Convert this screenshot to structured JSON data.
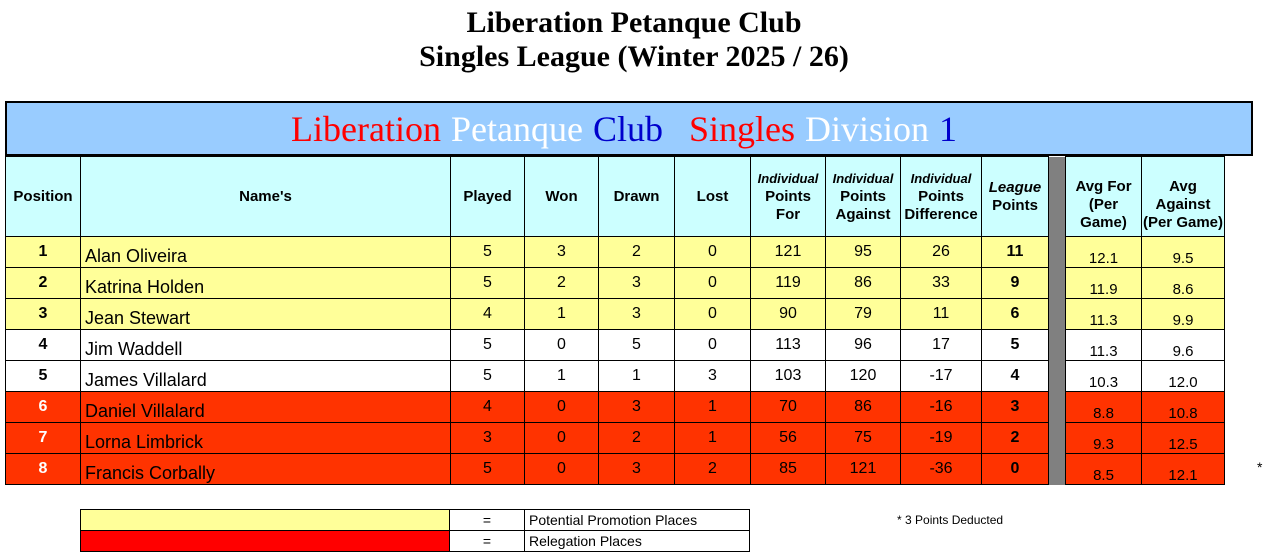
{
  "title": {
    "line1": "Liberation Petanque Club",
    "line2": "Singles League (Winter 2025 / 26)"
  },
  "banner": [
    {
      "text": "Liberation",
      "color": "#ff0000"
    },
    {
      "text": "Petanque",
      "color": "#ffffff"
    },
    {
      "text": "Club",
      "color": "#0000cc"
    },
    {
      "text": "Singles",
      "color": "#ff0000"
    },
    {
      "text": "Division",
      "color": "#ffffff"
    },
    {
      "text": "1",
      "color": "#0000cc"
    }
  ],
  "headers": {
    "position": "Position",
    "name": "Name's",
    "played": "Played",
    "won": "Won",
    "drawn": "Drawn",
    "lost": "Lost",
    "individual": "Individual",
    "points": "Points",
    "for": "For",
    "against": "Against",
    "difference": "Difference",
    "league": "League",
    "avg_for": "Avg For",
    "avg_against": "Avg Against",
    "per_game": "(Per Game)"
  },
  "rows": [
    {
      "pos": "1",
      "name": "Alan Oliveira",
      "played": "5",
      "won": "3",
      "drawn": "2",
      "lost": "0",
      "pf": "121",
      "pa": "95",
      "pd": "26",
      "lp": "11",
      "avg_for": "12.1",
      "avg_against": "9.5",
      "zone": "promo"
    },
    {
      "pos": "2",
      "name": "Katrina Holden",
      "played": "5",
      "won": "2",
      "drawn": "3",
      "lost": "0",
      "pf": "119",
      "pa": "86",
      "pd": "33",
      "lp": "9",
      "avg_for": "11.9",
      "avg_against": "8.6",
      "zone": "promo"
    },
    {
      "pos": "3",
      "name": "Jean Stewart",
      "played": "4",
      "won": "1",
      "drawn": "3",
      "lost": "0",
      "pf": "90",
      "pa": "79",
      "pd": "11",
      "lp": "6",
      "avg_for": "11.3",
      "avg_against": "9.9",
      "zone": "promo"
    },
    {
      "pos": "4",
      "name": "Jim Waddell",
      "played": "5",
      "won": "0",
      "drawn": "5",
      "lost": "0",
      "pf": "113",
      "pa": "96",
      "pd": "17",
      "lp": "5",
      "avg_for": "11.3",
      "avg_against": "9.6",
      "zone": "white"
    },
    {
      "pos": "5",
      "name": "James Villalard",
      "played": "5",
      "won": "1",
      "drawn": "1",
      "lost": "3",
      "pf": "103",
      "pa": "120",
      "pd": "-17",
      "lp": "4",
      "avg_for": "10.3",
      "avg_against": "12.0",
      "zone": "white"
    },
    {
      "pos": "6",
      "name": "Daniel Villalard",
      "played": "4",
      "won": "0",
      "drawn": "3",
      "lost": "1",
      "pf": "70",
      "pa": "86",
      "pd": "-16",
      "lp": "3",
      "avg_for": "8.8",
      "avg_against": "10.8",
      "zone": "releg"
    },
    {
      "pos": "7",
      "name": "Lorna Limbrick",
      "played": "3",
      "won": "0",
      "drawn": "2",
      "lost": "1",
      "pf": "56",
      "pa": "75",
      "pd": "-19",
      "lp": "2",
      "avg_for": "9.3",
      "avg_against": "12.5",
      "zone": "releg"
    },
    {
      "pos": "8",
      "name": "Francis Corbally",
      "played": "5",
      "won": "0",
      "drawn": "3",
      "lost": "2",
      "pf": "85",
      "pa": "121",
      "pd": "-36",
      "lp": "0",
      "avg_for": "8.5",
      "avg_against": "12.1",
      "zone": "releg"
    }
  ],
  "star_mark": "*",
  "key": {
    "equals": "=",
    "promotion_label": "Potential Promotion Places",
    "promotion_color": "#ffff99",
    "relegation_label": "Relegation Places",
    "relegation_color": "#ff0000"
  },
  "footnote": "*  3 Points Deducted",
  "colors": {
    "header_bg": "#ccffff",
    "banner_bg": "#99ccff",
    "promo_row": "#ffff99",
    "releg_row": "#ff3300"
  }
}
